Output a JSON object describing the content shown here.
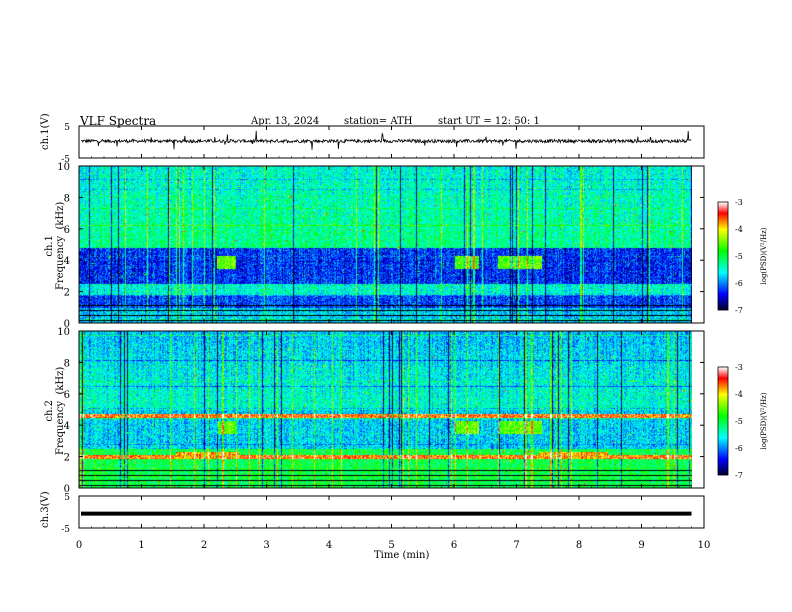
{
  "header": {
    "title": "VLF  Spectra",
    "date": "Apr. 13, 2024",
    "station": "station= ATH",
    "start": "start  UT  =    12: 50: 1"
  },
  "chart_data": [
    {
      "type": "line",
      "name": "ch1-waveform",
      "ylabel": "ch.1(V)",
      "yticks": [
        "5",
        "-5"
      ],
      "ylim": [
        -5,
        5
      ],
      "xlim": [
        0,
        10
      ],
      "baseline": 0.3,
      "noise_amplitude": 1.0,
      "trace_end_min": 9.8
    },
    {
      "type": "heatmap",
      "name": "ch1-spectrogram",
      "ylabel": "ch.1\nFrequency  (kHz)",
      "yticks": [
        "0",
        "2",
        "4",
        "6",
        "8",
        "10"
      ],
      "ylim": [
        0,
        10
      ],
      "xlim": [
        0,
        10
      ],
      "colorbar": {
        "label": "log(PSD)(V²/Hz)",
        "ticks": [
          "-3",
          "-4",
          "-5",
          "-6",
          "-7"
        ],
        "range": [
          -7,
          -3
        ]
      },
      "bursts_min": [
        [
          2.2,
          2.5
        ],
        [
          6.0,
          6.4
        ],
        [
          6.7,
          7.4
        ]
      ],
      "burst_freq_khz": [
        3.5,
        4.3
      ],
      "dark_band_khz": [
        [
          2.5,
          4.8
        ],
        [
          1.0,
          1.8
        ]
      ]
    },
    {
      "type": "heatmap",
      "name": "ch2-spectrogram",
      "ylabel": "ch.2\nFrequency  (kHz)",
      "yticks": [
        "0",
        "2",
        "4",
        "6",
        "8",
        "10"
      ],
      "ylim": [
        0,
        10
      ],
      "xlim": [
        0,
        10
      ],
      "colorbar": {
        "label": "log(PSD)(V²/Hz)",
        "ticks": [
          "-3",
          "-4",
          "-5",
          "-6",
          "-7"
        ],
        "range": [
          -7,
          -3
        ]
      },
      "red_lines_khz": [
        4.6,
        2.0
      ],
      "bursts_min": [
        [
          2.2,
          2.5
        ],
        [
          6.0,
          6.4
        ],
        [
          6.7,
          7.4
        ]
      ]
    },
    {
      "type": "line",
      "name": "ch3-waveform",
      "ylabel": "ch.3(V)",
      "yticks": [
        "5",
        "-5"
      ],
      "ylim": [
        -5,
        5
      ],
      "xlim": [
        0,
        10
      ],
      "baseline": -0.5,
      "trace_end_min": 9.8
    }
  ],
  "x_axis": {
    "label": "Time  (min)",
    "ticks": [
      "0",
      "1",
      "2",
      "3",
      "4",
      "5",
      "6",
      "7",
      "8",
      "9",
      "10"
    ]
  },
  "colors": {
    "colormap": [
      "#000030",
      "#0000ff",
      "#00ffff",
      "#00ff00",
      "#ffff00",
      "#ff0000",
      "#ffffff"
    ]
  }
}
